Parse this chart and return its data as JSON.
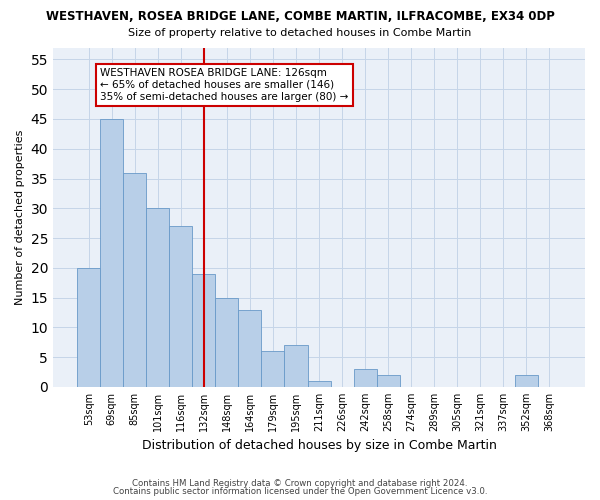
{
  "title1": "WESTHAVEN, ROSEA BRIDGE LANE, COMBE MARTIN, ILFRACOMBE, EX34 0DP",
  "title2": "Size of property relative to detached houses in Combe Martin",
  "xlabel": "Distribution of detached houses by size in Combe Martin",
  "ylabel": "Number of detached properties",
  "categories": [
    "53sqm",
    "69sqm",
    "85sqm",
    "101sqm",
    "116sqm",
    "132sqm",
    "148sqm",
    "164sqm",
    "179sqm",
    "195sqm",
    "211sqm",
    "226sqm",
    "242sqm",
    "258sqm",
    "274sqm",
    "289sqm",
    "305sqm",
    "321sqm",
    "337sqm",
    "352sqm",
    "368sqm"
  ],
  "values": [
    20,
    45,
    36,
    30,
    27,
    19,
    15,
    13,
    6,
    7,
    1,
    0,
    3,
    2,
    0,
    0,
    0,
    0,
    0,
    2,
    0
  ],
  "bar_color": "#b8cfe8",
  "bar_edge_color": "#6899c8",
  "vline_x": 5,
  "vline_color": "#cc0000",
  "ylim": [
    0,
    57
  ],
  "yticks": [
    0,
    5,
    10,
    15,
    20,
    25,
    30,
    35,
    40,
    45,
    50,
    55
  ],
  "annotation_text": "WESTHAVEN ROSEA BRIDGE LANE: 126sqm\n← 65% of detached houses are smaller (146)\n35% of semi-detached houses are larger (80) →",
  "annotation_box_color": "#ffffff",
  "annotation_box_edge": "#cc0000",
  "footer1": "Contains HM Land Registry data © Crown copyright and database right 2024.",
  "footer2": "Contains public sector information licensed under the Open Government Licence v3.0.",
  "background_color": "#eaf0f8",
  "grid_color": "#c5d5e8"
}
